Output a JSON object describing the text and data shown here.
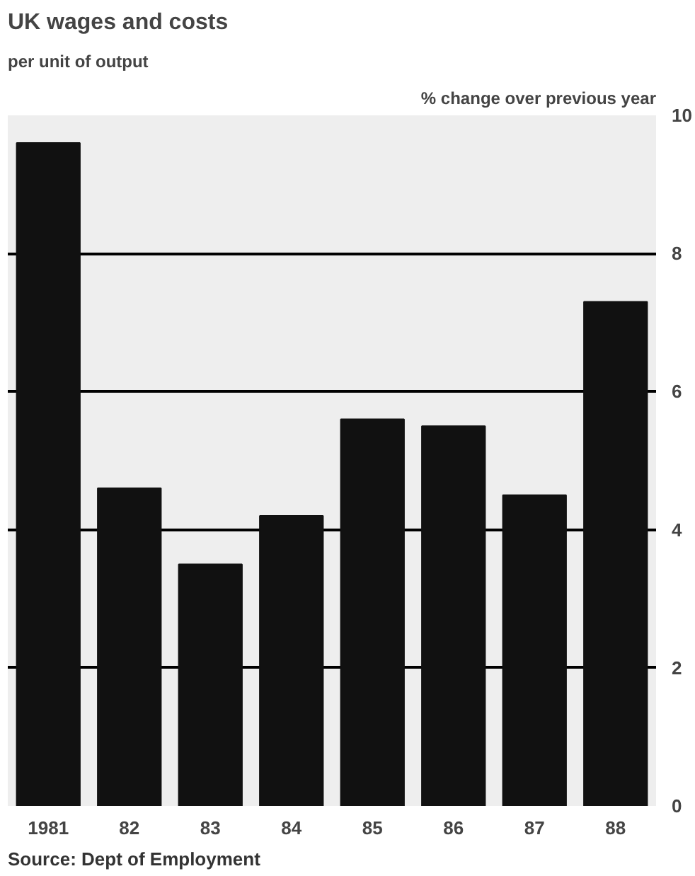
{
  "chart_data": {
    "type": "bar",
    "title": "UK wages and costs",
    "subtitle": "per unit of output",
    "ylabel": "% change over previous year",
    "categories": [
      "1981",
      "82",
      "83",
      "84",
      "85",
      "86",
      "87",
      "88"
    ],
    "values": [
      9.6,
      4.6,
      3.5,
      4.2,
      5.6,
      5.5,
      4.5,
      7.3
    ],
    "color": "#111111",
    "ylim": [
      0,
      10
    ],
    "yticks": [
      0,
      2,
      4,
      6,
      8,
      10
    ],
    "grid": "y",
    "annotations": [
      "Source: Dept of Employment"
    ]
  }
}
